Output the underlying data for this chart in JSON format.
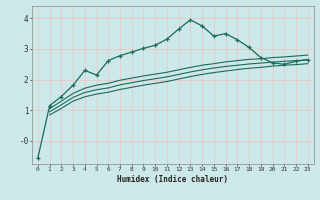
{
  "xlabel": "Humidex (Indice chaleur)",
  "background_color": "#cce8e8",
  "grid_color": "#e8c8c8",
  "line_color": "#1a6b5a",
  "xlim": [
    -0.5,
    23.5
  ],
  "ylim": [
    -0.75,
    4.4
  ],
  "xtick_labels": [
    "0",
    "1",
    "2",
    "3",
    "4",
    "5",
    "6",
    "7",
    "8",
    "9",
    "10",
    "11",
    "12",
    "13",
    "14",
    "15",
    "16",
    "17",
    "18",
    "19",
    "20",
    "21",
    "22",
    "23"
  ],
  "ytick_labels": [
    "-0",
    "1",
    "2",
    "3",
    "4"
  ],
  "ytick_values": [
    0,
    1,
    2,
    3,
    4
  ],
  "curve1_x": [
    0,
    1,
    2,
    3,
    4,
    5,
    6,
    7,
    8,
    9,
    10,
    11,
    12,
    13,
    14,
    15,
    16,
    17,
    18,
    19,
    20,
    21,
    22,
    23
  ],
  "curve1_y": [
    -0.55,
    1.15,
    1.45,
    1.82,
    2.3,
    2.15,
    2.62,
    2.78,
    2.9,
    3.02,
    3.12,
    3.32,
    3.65,
    3.95,
    3.75,
    3.42,
    3.5,
    3.3,
    3.05,
    2.72,
    2.55,
    2.5,
    2.6,
    2.65
  ],
  "curve2_x": [
    1,
    2,
    3,
    4,
    5,
    6,
    7,
    8,
    9,
    10,
    11,
    12,
    13,
    14,
    15,
    16,
    17,
    18,
    19,
    20,
    21,
    22,
    23
  ],
  "curve2_y": [
    1.05,
    1.3,
    1.55,
    1.72,
    1.82,
    1.88,
    1.98,
    2.05,
    2.12,
    2.18,
    2.24,
    2.32,
    2.4,
    2.47,
    2.52,
    2.58,
    2.62,
    2.66,
    2.68,
    2.72,
    2.74,
    2.77,
    2.8
  ],
  "curve3_x": [
    1,
    2,
    3,
    4,
    5,
    6,
    7,
    8,
    9,
    10,
    11,
    12,
    13,
    14,
    15,
    16,
    17,
    18,
    19,
    20,
    21,
    22,
    23
  ],
  "curve3_y": [
    0.95,
    1.18,
    1.42,
    1.58,
    1.67,
    1.73,
    1.83,
    1.9,
    1.97,
    2.03,
    2.09,
    2.17,
    2.25,
    2.32,
    2.38,
    2.43,
    2.47,
    2.51,
    2.54,
    2.57,
    2.6,
    2.62,
    2.65
  ],
  "curve4_x": [
    1,
    2,
    3,
    4,
    5,
    6,
    7,
    8,
    9,
    10,
    11,
    12,
    13,
    14,
    15,
    16,
    17,
    18,
    19,
    20,
    21,
    22,
    23
  ],
  "curve4_y": [
    0.85,
    1.06,
    1.3,
    1.44,
    1.53,
    1.59,
    1.68,
    1.75,
    1.82,
    1.88,
    1.94,
    2.02,
    2.1,
    2.17,
    2.23,
    2.28,
    2.33,
    2.37,
    2.4,
    2.44,
    2.47,
    2.49,
    2.52
  ]
}
